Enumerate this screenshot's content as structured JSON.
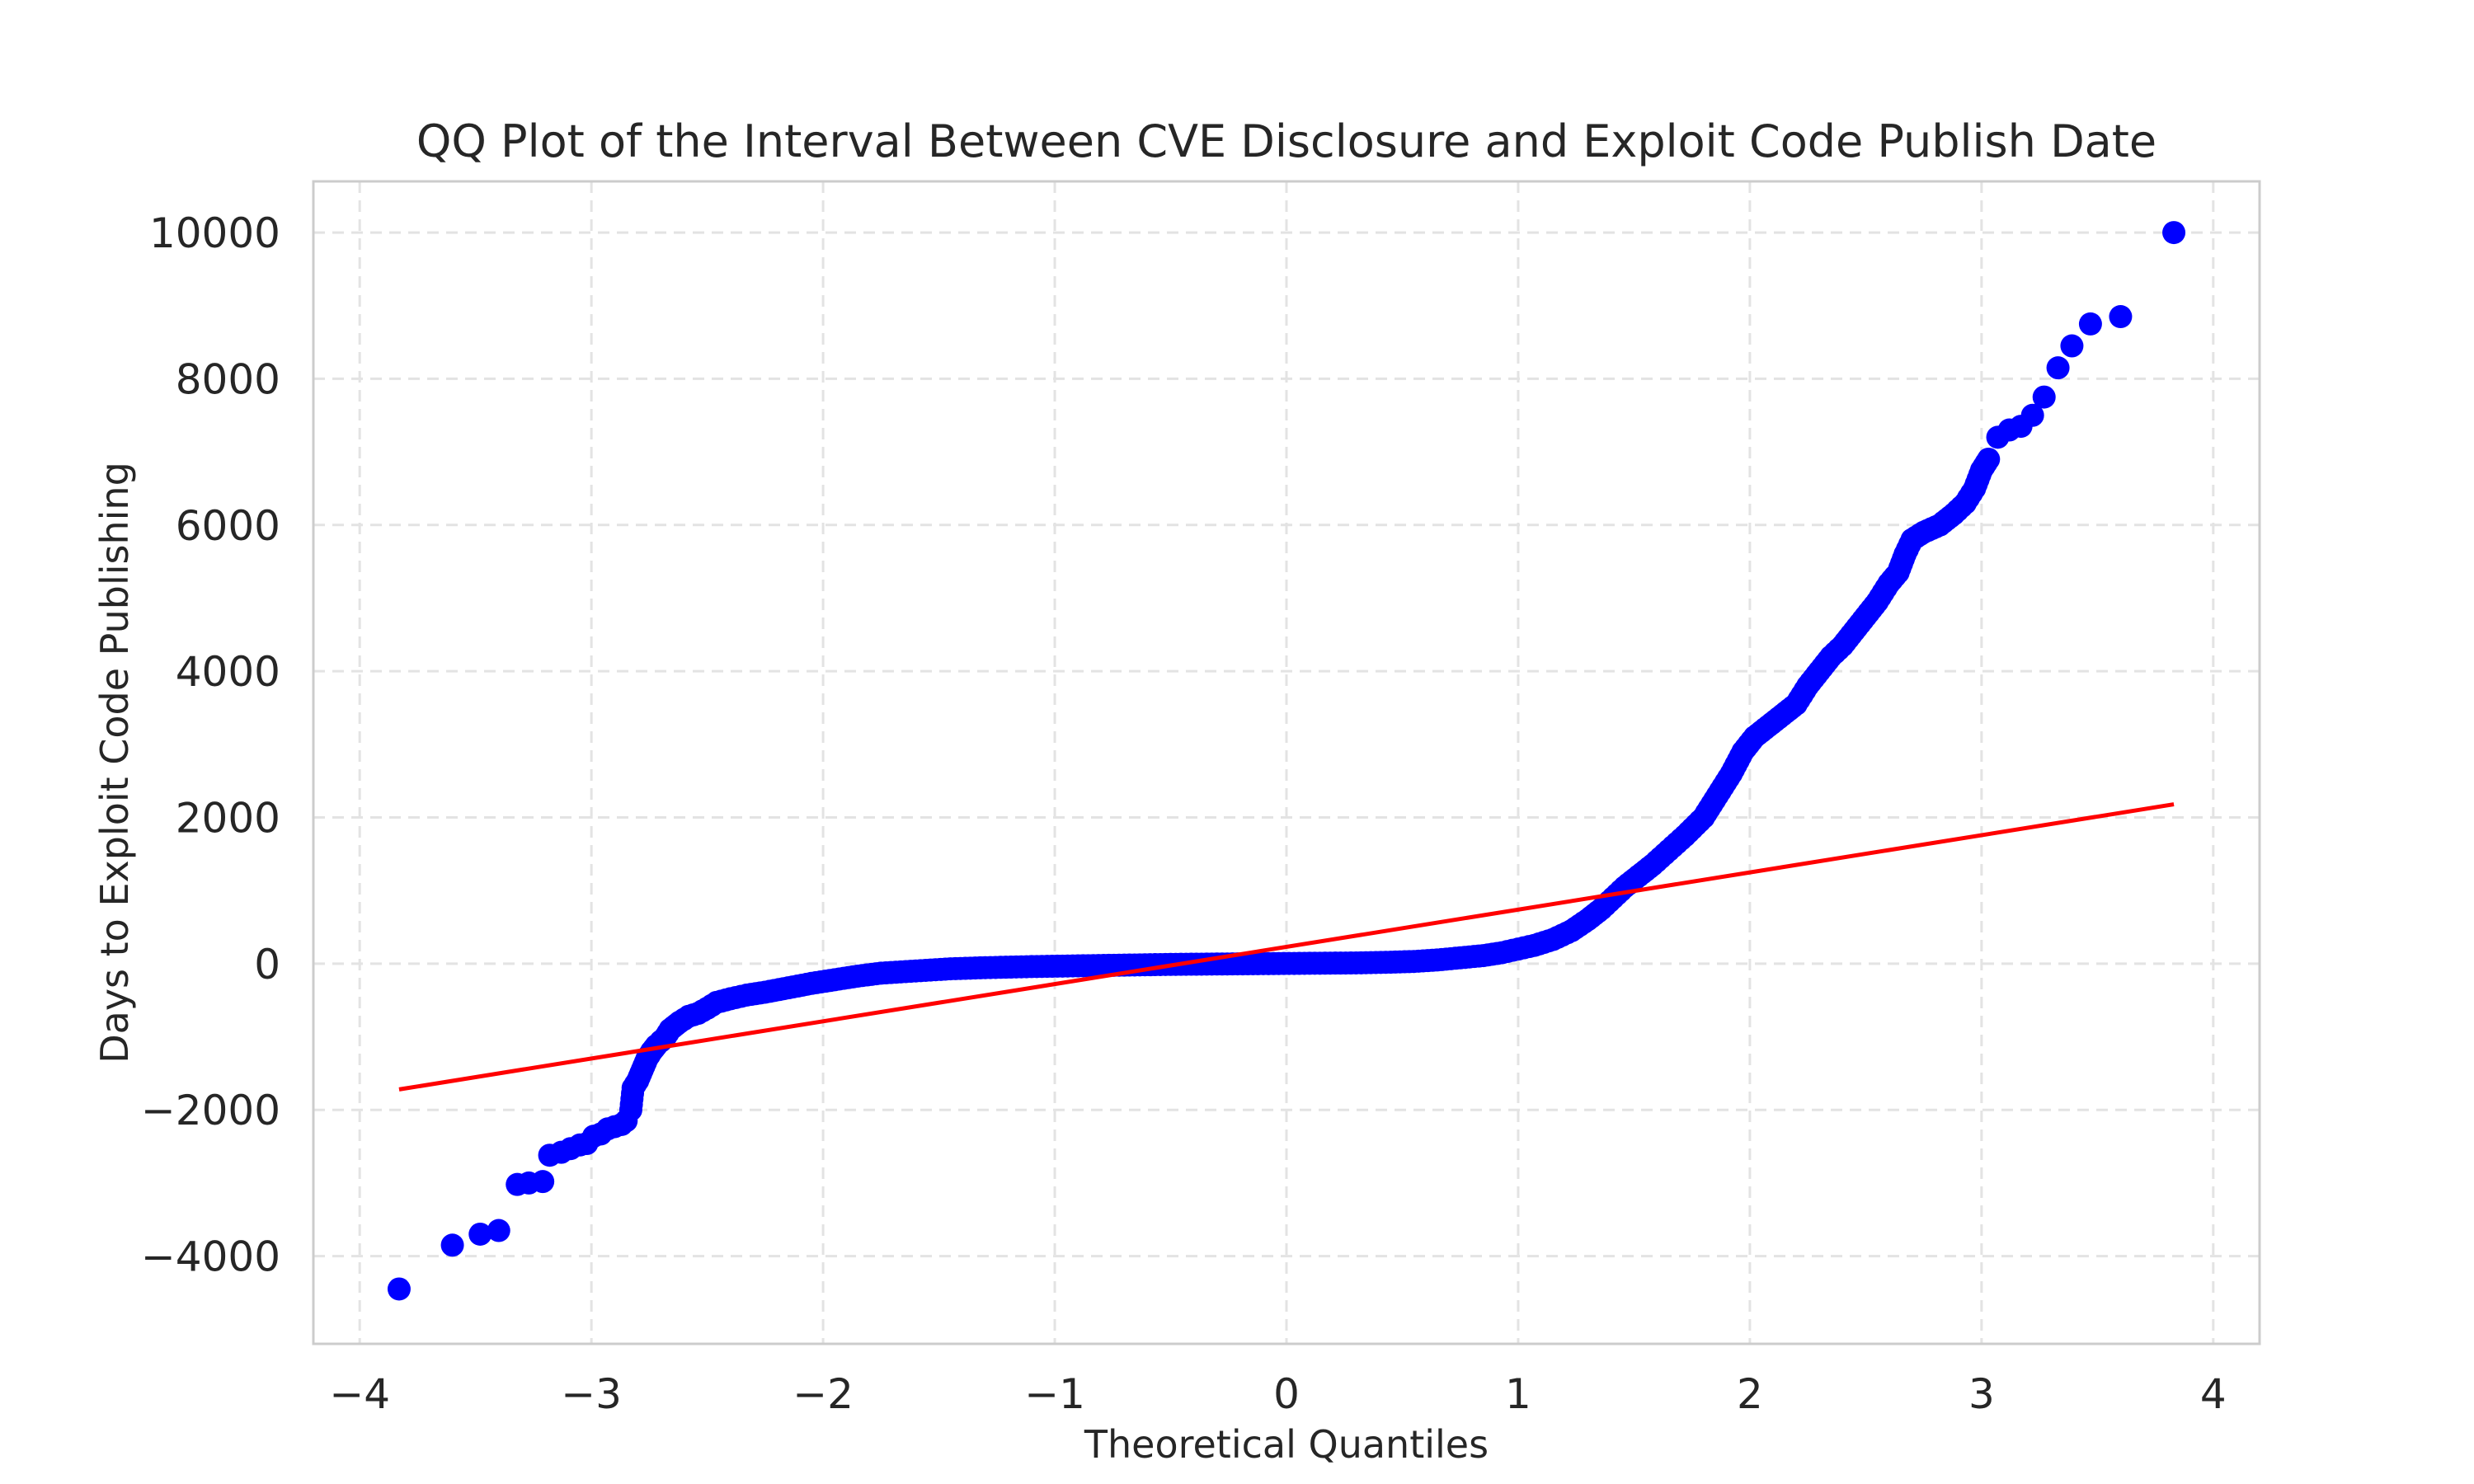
{
  "chart_data": {
    "type": "scatter",
    "title": "QQ Plot of the Interval Between CVE Disclosure and Exploit Code Publish Date",
    "xlabel": "Theoretical Quantiles",
    "ylabel": "Days to Exploit Code Publishing",
    "xlim": [
      -4.2,
      4.2
    ],
    "ylim": [
      -5200,
      10700
    ],
    "xticks": [
      -4,
      -3,
      -2,
      -1,
      0,
      1,
      2,
      3,
      4
    ],
    "xtick_labels": [
      "−4",
      "−3",
      "−2",
      "−1",
      "0",
      "1",
      "2",
      "3",
      "4"
    ],
    "yticks": [
      -4000,
      -2000,
      0,
      2000,
      4000,
      6000,
      8000,
      10000
    ],
    "ytick_labels": [
      "−4000",
      "−2000",
      "0",
      "2000",
      "4000",
      "6000",
      "8000",
      "10000"
    ],
    "grid": true,
    "point_color": "#0000ff",
    "line_color": "#ff0000",
    "points": [
      [
        -3.83,
        -4450
      ],
      [
        -3.6,
        -3850
      ],
      [
        -3.48,
        -3700
      ],
      [
        -3.4,
        -3650
      ],
      [
        -3.32,
        -3020
      ],
      [
        -3.27,
        -3000
      ],
      [
        -3.21,
        -2980
      ],
      [
        -3.18,
        -2620
      ],
      [
        -3.13,
        -2580
      ],
      [
        -3.09,
        -2530
      ],
      [
        -3.05,
        -2480
      ],
      [
        -3.02,
        -2460
      ],
      [
        -2.99,
        -2360
      ],
      [
        -2.96,
        -2330
      ],
      [
        -2.93,
        -2260
      ],
      [
        -2.9,
        -2230
      ],
      [
        -2.87,
        -2200
      ],
      [
        -2.85,
        -2150
      ],
      [
        -2.83,
        -2000
      ],
      [
        -2.82,
        -1700
      ],
      [
        -2.8,
        -1600
      ],
      [
        -2.78,
        -1450
      ],
      [
        -2.76,
        -1300
      ],
      [
        -2.74,
        -1200
      ],
      [
        -2.72,
        -1120
      ],
      [
        -2.7,
        -1060
      ],
      [
        -2.68,
        -1000
      ],
      [
        -2.66,
        -900
      ],
      [
        -2.62,
        -800
      ],
      [
        -2.58,
        -720
      ],
      [
        -2.54,
        -680
      ],
      [
        -2.5,
        -610
      ],
      [
        -2.46,
        -530
      ],
      [
        -2.4,
        -480
      ],
      [
        -2.33,
        -430
      ],
      [
        -2.25,
        -390
      ],
      [
        -2.15,
        -330
      ],
      [
        -2.05,
        -270
      ],
      [
        -1.95,
        -220
      ],
      [
        -1.85,
        -170
      ],
      [
        -1.75,
        -130
      ],
      [
        -1.6,
        -100
      ],
      [
        -1.45,
        -70
      ],
      [
        -1.3,
        -55
      ],
      [
        -1.1,
        -40
      ],
      [
        -0.9,
        -30
      ],
      [
        -0.7,
        -20
      ],
      [
        -0.5,
        -10
      ],
      [
        -0.3,
        -5
      ],
      [
        -0.1,
        0
      ],
      [
        0.1,
        5
      ],
      [
        0.3,
        10
      ],
      [
        0.45,
        20
      ],
      [
        0.55,
        30
      ],
      [
        0.65,
        50
      ],
      [
        0.75,
        80
      ],
      [
        0.85,
        110
      ],
      [
        0.93,
        150
      ],
      [
        1.0,
        200
      ],
      [
        1.07,
        250
      ],
      [
        1.15,
        330
      ],
      [
        1.23,
        450
      ],
      [
        1.3,
        600
      ],
      [
        1.36,
        750
      ],
      [
        1.41,
        900
      ],
      [
        1.46,
        1050
      ],
      [
        1.52,
        1200
      ],
      [
        1.58,
        1350
      ],
      [
        1.65,
        1550
      ],
      [
        1.72,
        1750
      ],
      [
        1.8,
        2000
      ],
      [
        1.86,
        2300
      ],
      [
        1.92,
        2600
      ],
      [
        1.97,
        2900
      ],
      [
        2.02,
        3100
      ],
      [
        2.08,
        3250
      ],
      [
        2.14,
        3400
      ],
      [
        2.2,
        3550
      ],
      [
        2.25,
        3800
      ],
      [
        2.3,
        4000
      ],
      [
        2.35,
        4200
      ],
      [
        2.4,
        4350
      ],
      [
        2.45,
        4550
      ],
      [
        2.5,
        4750
      ],
      [
        2.55,
        4950
      ],
      [
        2.6,
        5200
      ],
      [
        2.64,
        5350
      ],
      [
        2.67,
        5600
      ],
      [
        2.7,
        5800
      ],
      [
        2.75,
        5900
      ],
      [
        2.82,
        6000
      ],
      [
        2.88,
        6150
      ],
      [
        2.93,
        6300
      ],
      [
        2.97,
        6500
      ],
      [
        3.0,
        6750
      ],
      [
        3.03,
        6900
      ],
      [
        3.07,
        7200
      ],
      [
        3.12,
        7300
      ],
      [
        3.17,
        7350
      ],
      [
        3.22,
        7500
      ],
      [
        3.27,
        7750
      ],
      [
        3.33,
        8150
      ],
      [
        3.39,
        8450
      ],
      [
        3.47,
        8750
      ],
      [
        3.6,
        8850
      ],
      [
        3.83,
        10000
      ]
    ],
    "fit_line": {
      "x": [
        -3.83,
        3.83
      ],
      "y": [
        -1720,
        2180
      ]
    }
  }
}
